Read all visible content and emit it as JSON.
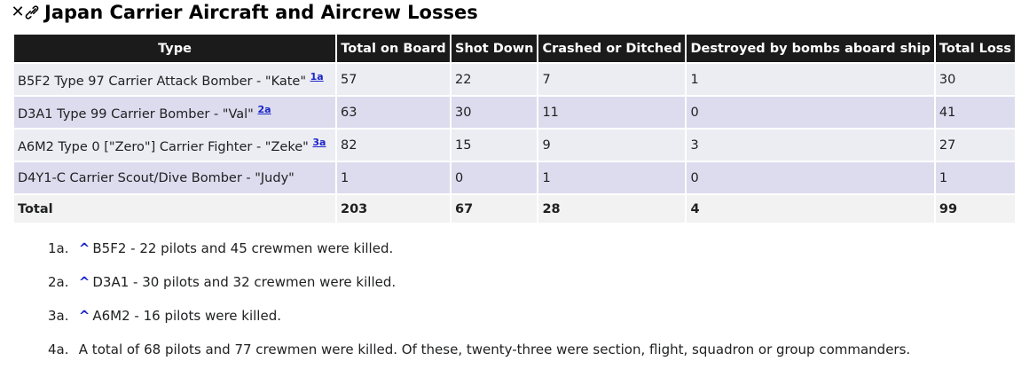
{
  "heading": {
    "close_icon_glyph": "✕",
    "title": "Japan Carrier Aircraft and Aircrew Losses"
  },
  "table": {
    "columns": [
      "Type",
      "Total on Board",
      "Shot Down",
      "Crashed or Ditched",
      "Destroyed by bombs aboard ship",
      "Total Loss"
    ],
    "rows": [
      {
        "type": "B5F2 Type 97 Carrier Attack Bomber - \"Kate\"",
        "ref": "1a",
        "values": [
          "57",
          "22",
          "7",
          "1",
          "30"
        ]
      },
      {
        "type": "D3A1 Type 99 Carrier Bomber - \"Val\"",
        "ref": "2a",
        "values": [
          "63",
          "30",
          "11",
          "0",
          "41"
        ]
      },
      {
        "type": "A6M2 Type 0 [\"Zero\"] Carrier Fighter - \"Zeke\"",
        "ref": "3a",
        "values": [
          "82",
          "15",
          "9",
          "3",
          "27"
        ]
      },
      {
        "type": "D4Y1-C Carrier Scout/Dive Bomber - \"Judy\"",
        "ref": "",
        "values": [
          "1",
          "0",
          "1",
          "0",
          "1"
        ]
      }
    ],
    "total": {
      "label": "Total",
      "values": [
        "203",
        "67",
        "28",
        "4",
        "99"
      ]
    }
  },
  "notes": [
    {
      "num": "1a.",
      "caret": "^",
      "text": "B5F2 - 22 pilots and 45 crewmen were killed."
    },
    {
      "num": "2a.",
      "caret": "^",
      "text": "D3A1 - 30 pilots and 32 crewmen were killed."
    },
    {
      "num": "3a.",
      "caret": "^",
      "text": "A6M2 - 16 pilots were killed."
    },
    {
      "num": "4a.",
      "caret": "",
      "text": "A total of 68 pilots and 77 crewmen were killed. Of these, twenty-three were section, flight, squadron or group commanders."
    }
  ]
}
